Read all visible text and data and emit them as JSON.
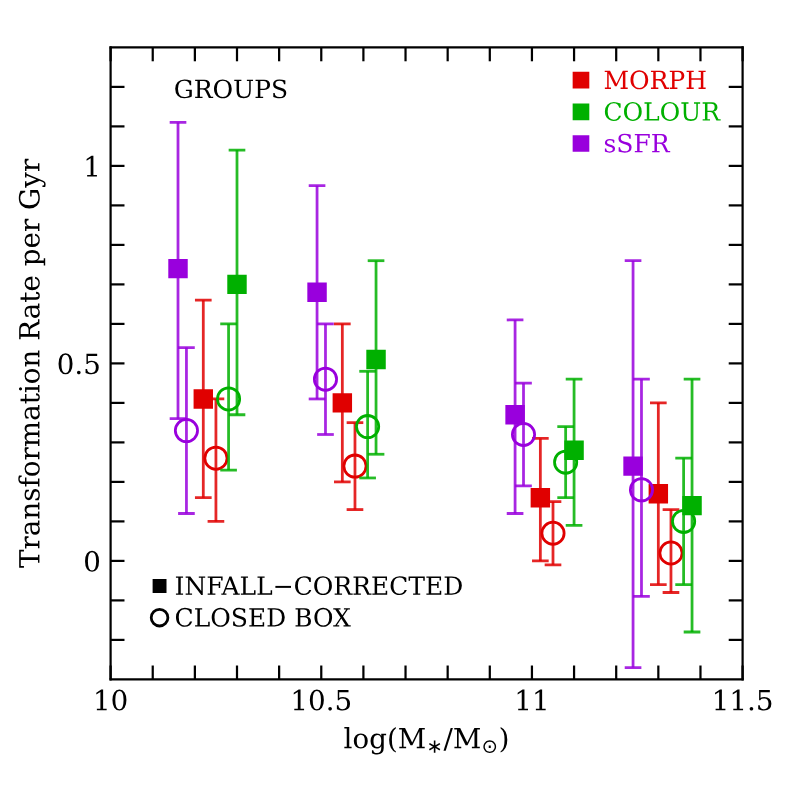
{
  "chart_data": {
    "type": "scatter",
    "xlabel": "log(M$_{∗}$/M$_{⊙}$)",
    "ylabel": "Transformation Rate per Gyr",
    "annotations": [
      "GROUPS",
      "INFALL−CORRECTED",
      "CLOSED BOX"
    ],
    "xlim": [
      10,
      11.5
    ],
    "ylim": [
      -0.3,
      1.3
    ],
    "xticks": [
      10,
      {
        "value": 10.1,
        "label": null
      },
      {
        "value": 10.2,
        "label": null
      },
      {
        "value": 10.3,
        "label": null
      },
      {
        "value": 10.4,
        "label": null
      },
      10.5,
      {
        "value": 10.6,
        "label": null
      },
      {
        "value": 10.7,
        "label": null
      },
      {
        "value": 10.8,
        "label": null
      },
      {
        "value": 10.9,
        "label": null
      },
      11,
      {
        "value": 11.1,
        "label": null
      },
      {
        "value": 11.2,
        "label": null
      },
      {
        "value": 11.3,
        "label": null
      },
      {
        "value": 11.4,
        "label": null
      },
      11.5
    ],
    "yticks": [
      {
        "value": -0.2,
        "label": null
      },
      {
        "value": -0.1,
        "label": null
      },
      0,
      {
        "value": 0.1,
        "label": null
      },
      {
        "value": 0.2,
        "label": null
      },
      {
        "value": 0.3,
        "label": null
      },
      {
        "value": 0.4,
        "label": null
      },
      0.5,
      {
        "value": 0.6,
        "label": null
      },
      {
        "value": 0.7,
        "label": null
      },
      {
        "value": 0.8,
        "label": null
      },
      {
        "value": 0.9,
        "label": null
      },
      1,
      {
        "value": 1.1,
        "label": null
      },
      {
        "value": 1.2,
        "label": null
      }
    ],
    "grid": false,
    "legend": "top right",
    "series": [
      {
        "name": "MORPH",
        "color": "#e00000",
        "marker": "square",
        "x": [
          10.22,
          10.55,
          11.02,
          11.3
        ],
        "values": [
          0.41,
          0.4,
          0.16,
          0.17
        ],
        "errors": [
          [
            0.16,
            0.66
          ],
          [
            0.2,
            0.6
          ],
          [
            0.0,
            0.31
          ],
          [
            -0.06,
            0.4
          ]
        ]
      },
      {
        "color": "#e00000",
        "marker": "circle",
        "x": [
          10.25,
          10.58,
          11.05,
          11.33
        ],
        "values": [
          0.26,
          0.24,
          0.07,
          0.02
        ],
        "errors": [
          [
            0.1,
            0.41
          ],
          [
            0.13,
            0.35
          ],
          [
            -0.01,
            0.15
          ],
          [
            -0.08,
            0.13
          ]
        ]
      },
      {
        "name": "COLOUR",
        "color": "#00b000",
        "marker": "square",
        "x": [
          10.3,
          10.63,
          11.1,
          11.38
        ],
        "values": [
          0.7,
          0.51,
          0.28,
          0.14
        ],
        "errors": [
          [
            0.37,
            1.04
          ],
          [
            0.27,
            0.76
          ],
          [
            0.09,
            0.46
          ],
          [
            -0.18,
            0.46
          ]
        ]
      },
      {
        "color": "#00b000",
        "marker": "circle",
        "x": [
          10.28,
          10.61,
          11.08,
          11.36
        ],
        "values": [
          0.41,
          0.34,
          0.25,
          0.1
        ],
        "errors": [
          [
            0.23,
            0.6
          ],
          [
            0.21,
            0.48
          ],
          [
            0.16,
            0.34
          ],
          [
            -0.06,
            0.26
          ]
        ]
      },
      {
        "name": "sSFR",
        "color": "#9900dd",
        "marker": "square",
        "x": [
          10.16,
          10.49,
          10.96,
          11.24
        ],
        "values": [
          0.74,
          0.68,
          0.37,
          0.24
        ],
        "errors": [
          [
            0.36,
            1.11
          ],
          [
            0.41,
            0.95
          ],
          [
            0.12,
            0.61
          ],
          [
            -0.27,
            0.76
          ]
        ]
      },
      {
        "color": "#9900dd",
        "marker": "circle",
        "x": [
          10.18,
          10.51,
          10.98,
          11.26
        ],
        "values": [
          0.33,
          0.46,
          0.32,
          0.18
        ],
        "errors": [
          [
            0.12,
            0.54
          ],
          [
            0.32,
            0.6
          ],
          [
            0.19,
            0.45
          ],
          [
            -0.09,
            0.46
          ]
        ]
      }
    ]
  }
}
